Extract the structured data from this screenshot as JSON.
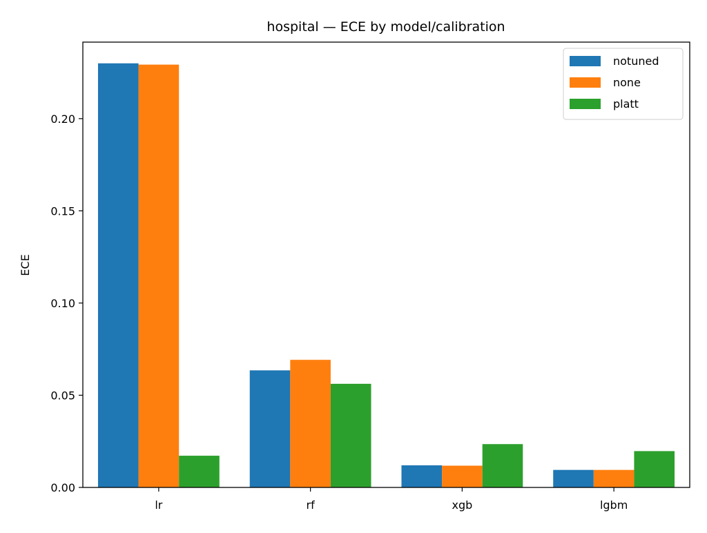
{
  "chart_data": {
    "type": "bar",
    "title": "hospital — ECE by model/calibration",
    "xlabel": "",
    "ylabel": "ECE",
    "categories": [
      "lr",
      "rf",
      "xgb",
      "lgbm"
    ],
    "series": [
      {
        "name": "notuned",
        "color": "#1f77b4",
        "values": [
          0.23,
          0.0635,
          0.012,
          0.0095
        ]
      },
      {
        "name": "none",
        "color": "#ff7f0e",
        "values": [
          0.2293,
          0.0692,
          0.0118,
          0.0095
        ]
      },
      {
        "name": "platt",
        "color": "#2ca02c",
        "values": [
          0.0172,
          0.0562,
          0.0235,
          0.0197
        ]
      }
    ],
    "ylim": [
      0,
      0.2415
    ],
    "yticks": [
      0.0,
      0.05,
      0.1,
      0.15,
      0.2
    ],
    "ytick_labels": [
      "0.00",
      "0.05",
      "0.10",
      "0.15",
      "0.20"
    ],
    "grid": false,
    "legend_position": "top-right"
  }
}
